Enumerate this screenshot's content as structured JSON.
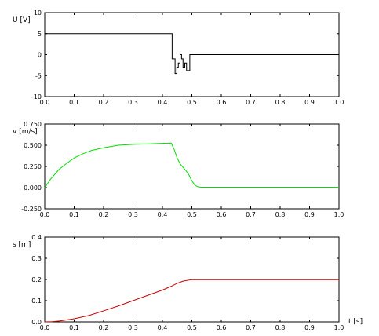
{
  "chart_data": [
    {
      "type": "line",
      "ylabel": "U [V]",
      "xlabel": "",
      "xlim": [
        0,
        1
      ],
      "ylim": [
        -10,
        10
      ],
      "xticks": [
        "0.0",
        "0.1",
        "0.2",
        "0.3",
        "0.4",
        "0.5",
        "0.6",
        "0.7",
        "0.8",
        "0.9",
        "1.0"
      ],
      "yticks": [
        "10",
        "5",
        "0",
        "-5",
        "-10"
      ],
      "series": [
        {
          "color": "#000000",
          "step": true,
          "x": [
            0,
            0.433,
            0.443,
            0.449,
            0.454,
            0.46,
            0.465,
            0.47,
            0.476,
            0.482,
            0.488,
            0.493,
            0.5,
            1.0
          ],
          "y": [
            5,
            -1,
            -4.5,
            -3,
            -2,
            0,
            -1,
            -3,
            -2,
            -3.8,
            -3.8,
            0,
            0,
            0
          ]
        }
      ]
    },
    {
      "type": "line",
      "ylabel": "v [m/s]",
      "xlabel": "",
      "xlim": [
        0,
        1
      ],
      "ylim": [
        -0.25,
        0.75
      ],
      "xticks": [
        "0.0",
        "0.1",
        "0.2",
        "0.3",
        "0.4",
        "0.5",
        "0.6",
        "0.7",
        "0.8",
        "0.9",
        "1.0"
      ],
      "yticks": [
        "0.750",
        "0.500",
        "0.250",
        "0.000",
        "-0.250"
      ],
      "series": [
        {
          "color": "#00dd00",
          "x": [
            0,
            0.02,
            0.05,
            0.08,
            0.1,
            0.13,
            0.16,
            0.2,
            0.25,
            0.3,
            0.35,
            0.38,
            0.43,
            0.44,
            0.45,
            0.46,
            0.47,
            0.48,
            0.49,
            0.5,
            0.51,
            0.52,
            0.53,
            1.0
          ],
          "y": [
            0,
            0.1,
            0.22,
            0.3,
            0.35,
            0.4,
            0.44,
            0.47,
            0.5,
            0.51,
            0.515,
            0.52,
            0.525,
            0.45,
            0.35,
            0.28,
            0.24,
            0.2,
            0.15,
            0.08,
            0.03,
            0.01,
            0.005,
            0.005
          ]
        }
      ]
    },
    {
      "type": "line",
      "ylabel": "s [m]",
      "xlabel": "t [s]",
      "xlim": [
        0,
        1
      ],
      "ylim": [
        0,
        0.4
      ],
      "xticks": [
        "0.0",
        "0.1",
        "0.2",
        "0.3",
        "0.4",
        "0.5",
        "0.6",
        "0.7",
        "0.8",
        "0.9",
        "1.0"
      ],
      "yticks": [
        "0.4",
        "0.3",
        "0.2",
        "0.1",
        "0.0"
      ],
      "series": [
        {
          "color": "#cc0000",
          "x": [
            0,
            0.025,
            0.05,
            0.1,
            0.15,
            0.2,
            0.25,
            0.3,
            0.35,
            0.4,
            0.43,
            0.45,
            0.47,
            0.49,
            0.5,
            1.0
          ],
          "y": [
            0,
            0.001,
            0.004,
            0.015,
            0.03,
            0.052,
            0.075,
            0.1,
            0.125,
            0.15,
            0.168,
            0.182,
            0.192,
            0.197,
            0.199,
            0.199
          ]
        }
      ]
    }
  ]
}
